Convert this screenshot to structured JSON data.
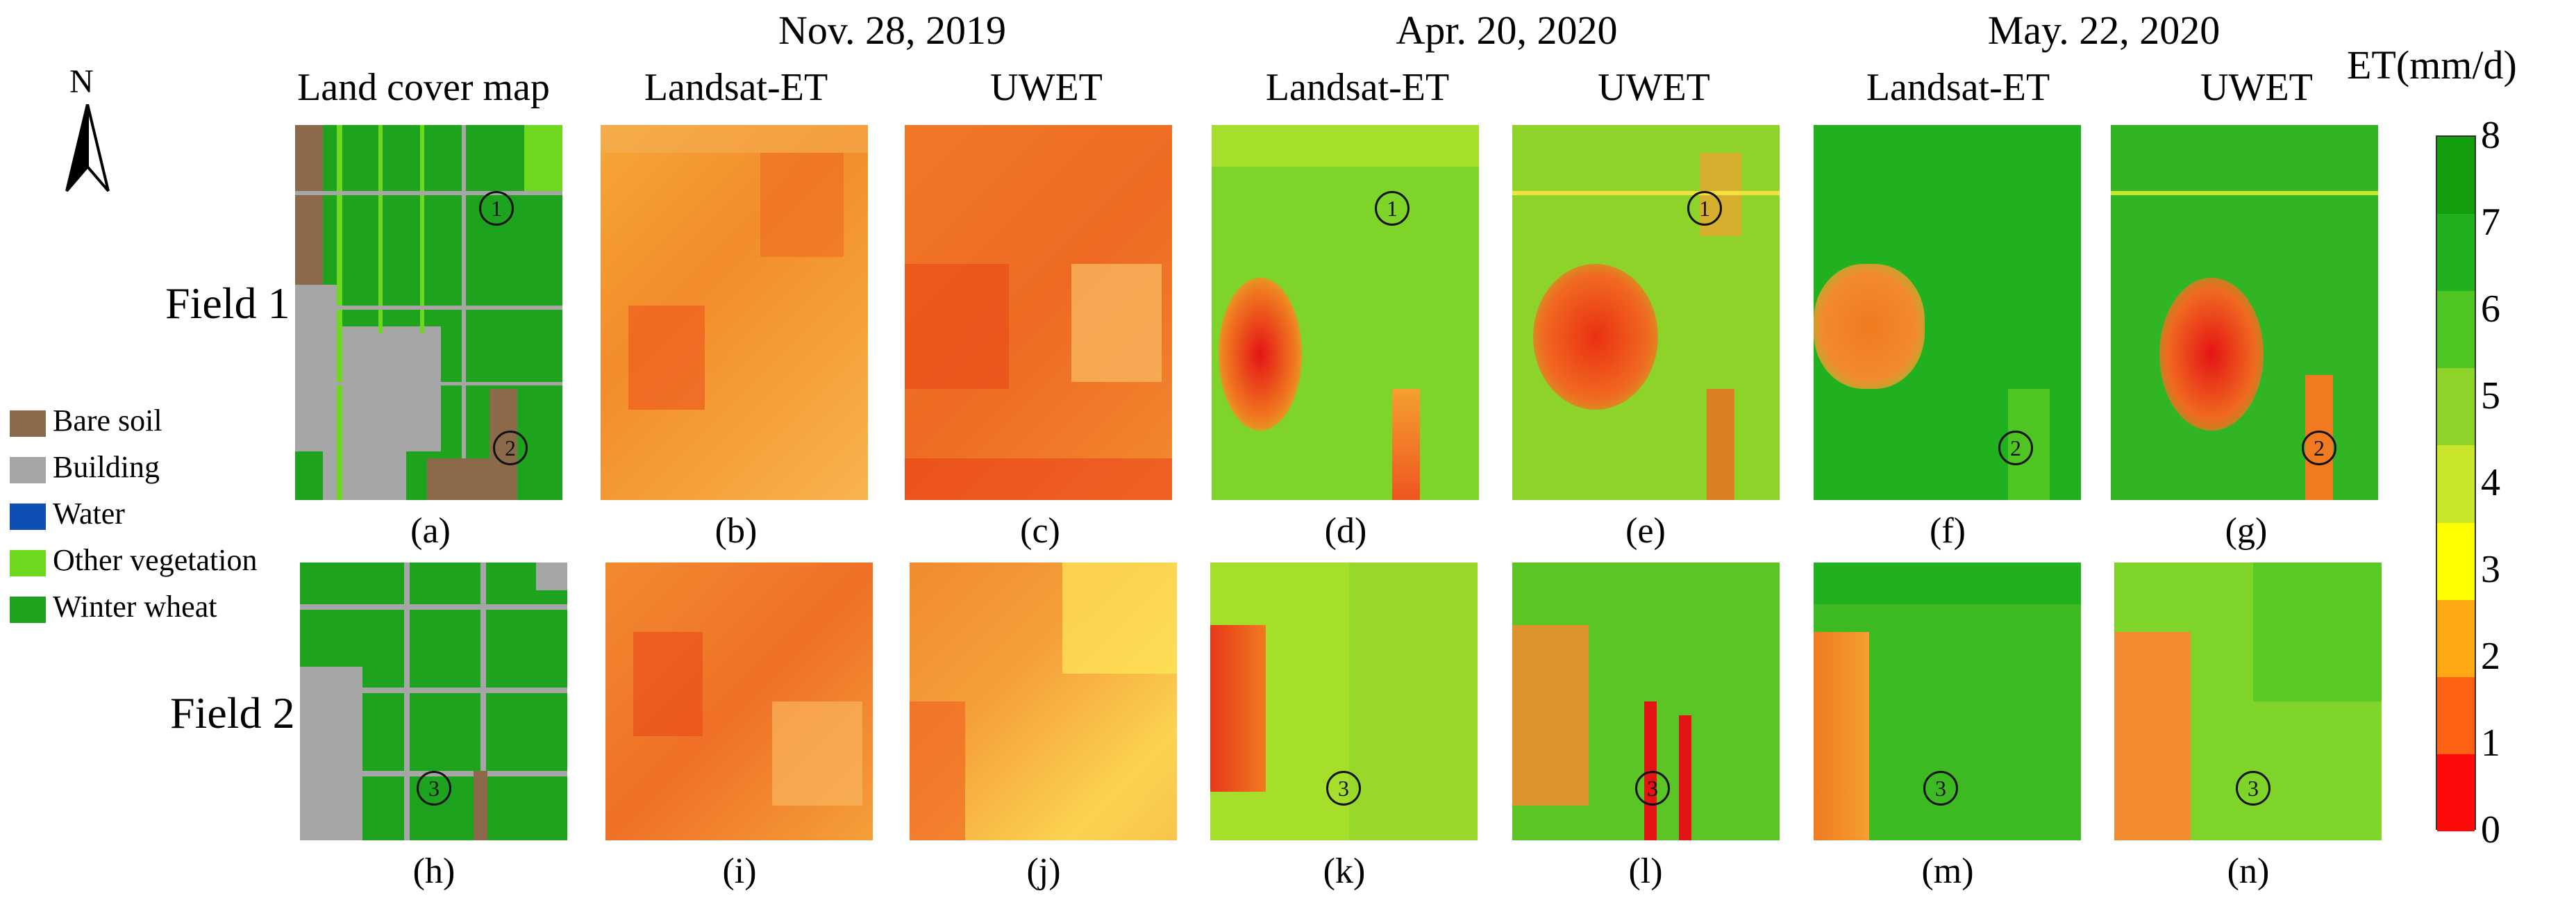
{
  "dates": [
    "Nov. 28, 2019",
    "Apr. 20, 2020",
    "May. 22, 2020"
  ],
  "column_headers": {
    "land_cover": "Land cover map",
    "landsat": "Landsat-ET",
    "uwet": "UWET"
  },
  "north_label": "N",
  "fields": [
    "Field 1",
    "Field 2"
  ],
  "legend": [
    {
      "label": "Bare soil",
      "color": "#8B6A4B"
    },
    {
      "label": "Building",
      "color": "#A6A6A6"
    },
    {
      "label": "Water",
      "color": "#0F4FB3"
    },
    {
      "label": "Other vegetation",
      "color": "#6ED81E"
    },
    {
      "label": "Winter wheat",
      "color": "#1DA31D"
    }
  ],
  "panel_captions": {
    "row1": [
      "(a)",
      "(b)",
      "(c)",
      "(d)",
      "(e)",
      "(f)",
      "(g)"
    ],
    "row2": [
      "(h)",
      "(i)",
      "(j)",
      "(k)",
      "(l)",
      "(m)",
      "(n)"
    ]
  },
  "markers": {
    "one": "1",
    "two": "2",
    "three": "3"
  },
  "colorbar": {
    "title": "ET(mm/d)",
    "ticks": [
      "8",
      "7",
      "6",
      "5",
      "4",
      "3",
      "2",
      "1",
      "0"
    ],
    "colors_top_to_bottom": [
      "#139e0f",
      "#20b020",
      "#4fc524",
      "#8ed32a",
      "#c9e62b",
      "#ffff00",
      "#ffaa14",
      "#ff6215",
      "#ff0a0a"
    ]
  }
}
